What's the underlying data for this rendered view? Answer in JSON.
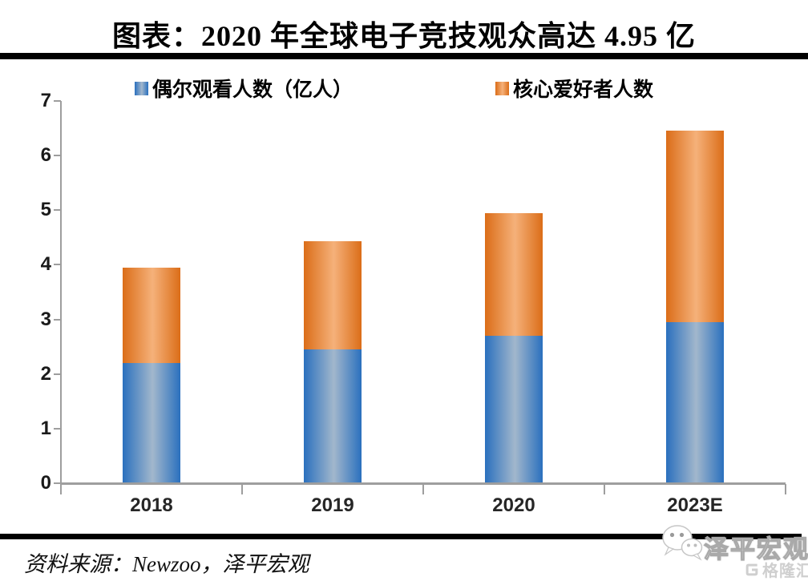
{
  "title": "图表：2020 年全球电子竞技观众高达 4.95 亿",
  "source": {
    "text": "资料来源：Newzoo，泽平宏观"
  },
  "watermark": {
    "brand": "泽平宏观",
    "platform": "格隆汇",
    "icons": [
      "wechat-icon",
      "gelonghui-logo-icon"
    ]
  },
  "colors": {
    "axis": "#9e9e9e",
    "title_text": "#000000",
    "tick_text": "#262626",
    "divider": "#000000",
    "watermark_text": "#cfcfcf"
  },
  "chart_data": {
    "type": "bar",
    "stacked": true,
    "title": "2020 年全球电子竞技观众高达 4.95 亿",
    "categories": [
      "2018",
      "2019",
      "2020",
      "2023E"
    ],
    "series": [
      {
        "name": "偶尔观看人数（亿人）",
        "values": [
          2.2,
          2.45,
          2.7,
          2.95
        ],
        "color_edge": "#2a70be",
        "color_center": "#a2b7cc"
      },
      {
        "name": "核心爱好者人数",
        "values": [
          1.75,
          1.98,
          2.25,
          3.51
        ],
        "color_edge": "#db6d18",
        "color_center": "#f5b17a"
      }
    ],
    "totals": [
      3.95,
      4.43,
      4.95,
      6.46
    ],
    "xlabel": "",
    "ylabel": "",
    "ylim": [
      0,
      7
    ],
    "yticks": [
      0,
      1,
      2,
      3,
      4,
      5,
      6,
      7
    ],
    "grid": false,
    "legend_position": "top"
  }
}
